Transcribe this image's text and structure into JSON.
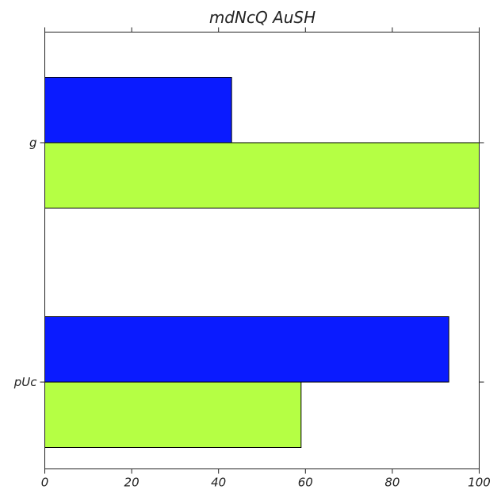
{
  "chart_data": {
    "type": "bar",
    "orientation": "horizontal",
    "title": "mdNcQ AuSH",
    "xlabel": "",
    "ylabel": "",
    "categories": [
      "pUc",
      "g"
    ],
    "series": [
      {
        "values": [
          59,
          100
        ],
        "color": "#b5ff44"
      },
      {
        "values": [
          93,
          43
        ],
        "color": "#0a1bff"
      }
    ],
    "xlim": [
      0,
      100
    ],
    "xticks": [
      "0",
      "20",
      "40",
      "60",
      "80",
      "100"
    ],
    "grid": false,
    "legend": "none"
  }
}
